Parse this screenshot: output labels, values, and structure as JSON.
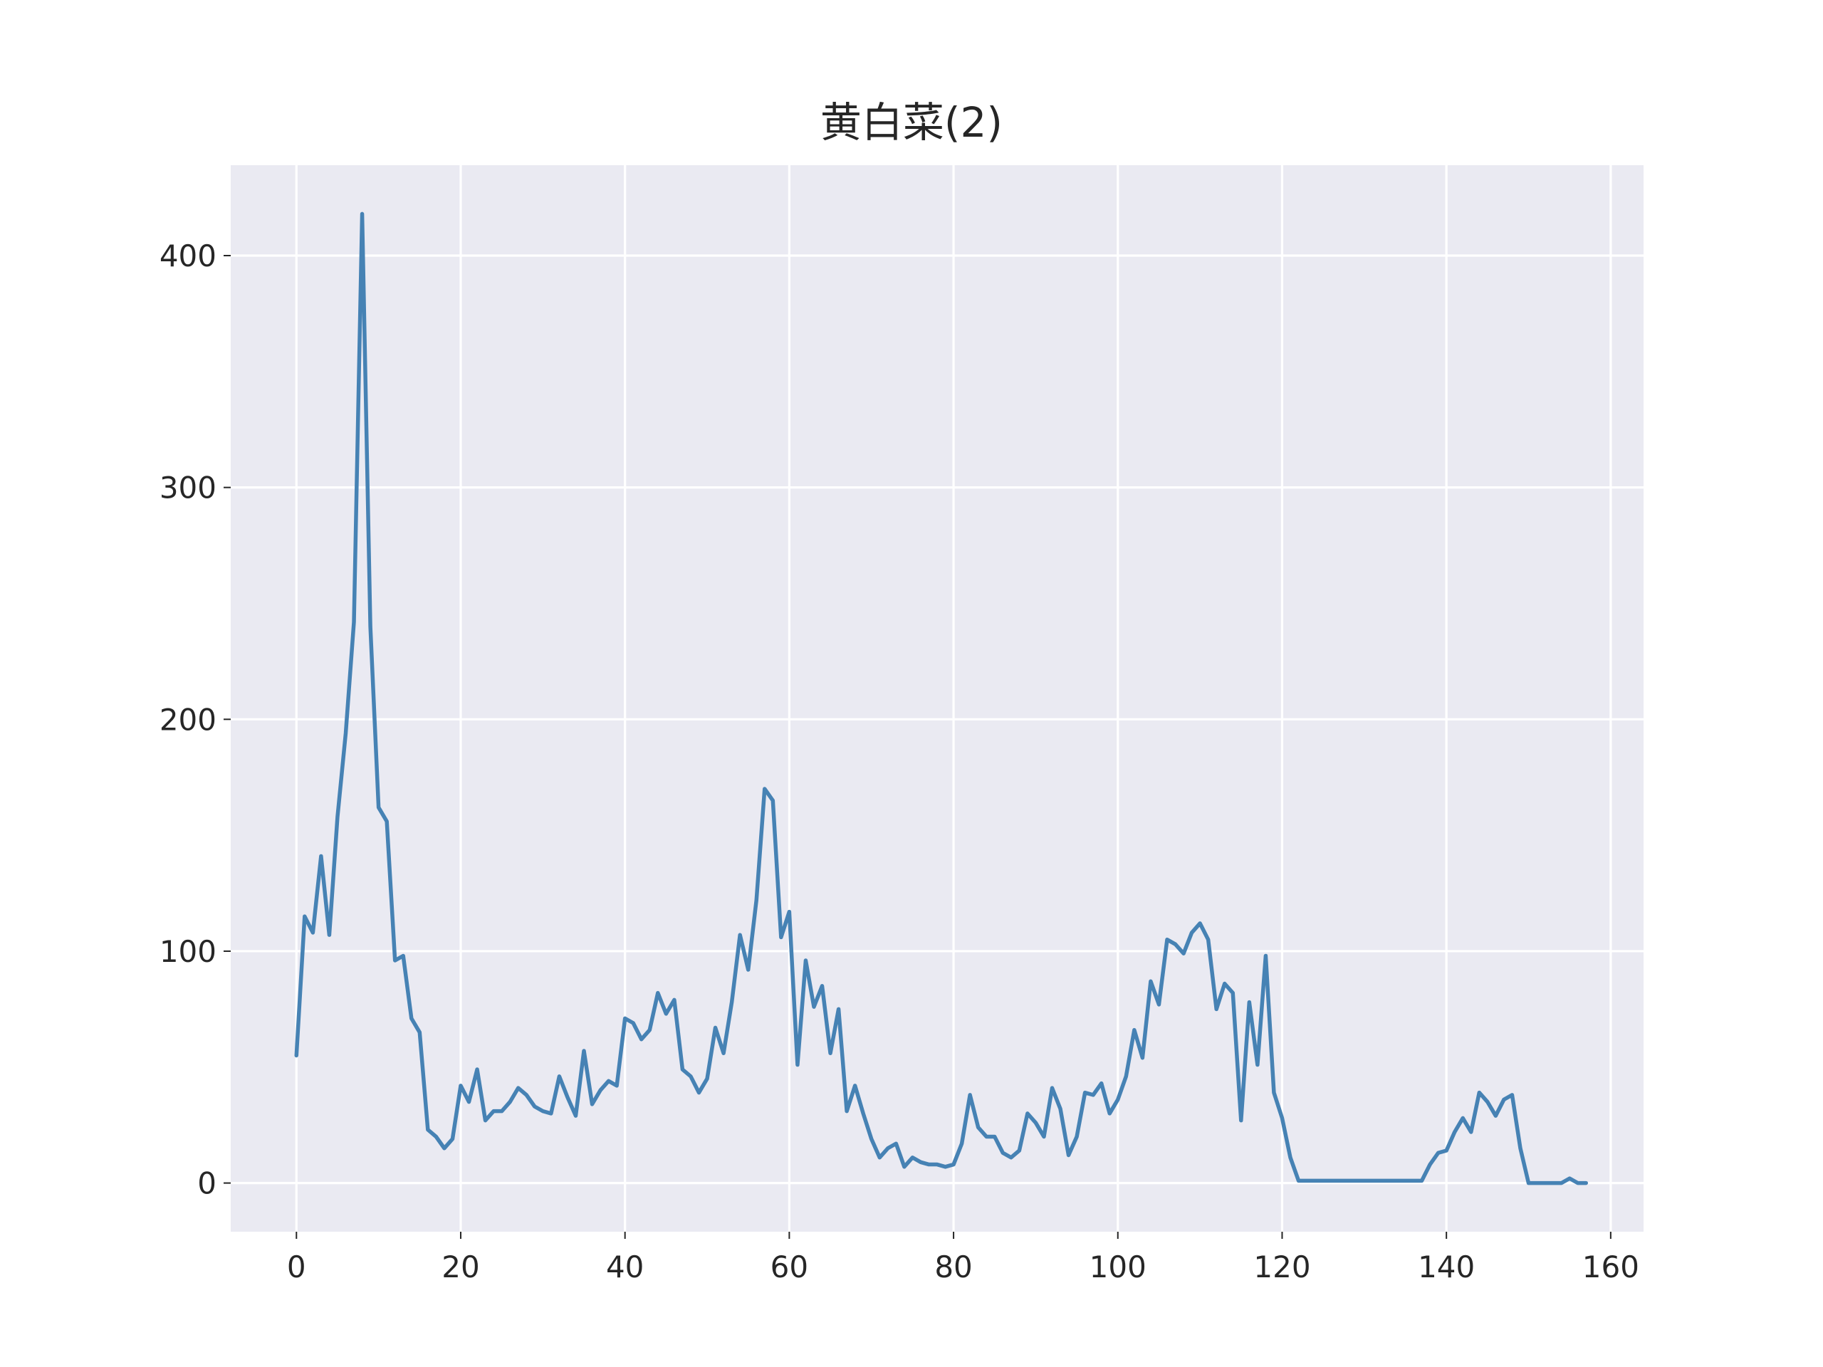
{
  "chart_data": {
    "type": "line",
    "title": "黄白菜(2)",
    "xlabel": "",
    "ylabel": "",
    "xlim": [
      -8,
      164
    ],
    "ylim": [
      -21,
      439
    ],
    "xticks": [
      0,
      20,
      40,
      60,
      80,
      100,
      120,
      140,
      160
    ],
    "yticks": [
      0,
      100,
      200,
      300,
      400
    ],
    "grid": true,
    "colors": {
      "series": "#4682b4",
      "plot_background": "#eaeaf2",
      "grid": "#ffffff",
      "text": "#262626"
    },
    "series": [
      {
        "values": [
          55,
          115,
          108,
          141,
          107,
          158,
          194,
          242,
          418,
          240,
          162,
          156,
          96,
          98,
          71,
          65,
          23,
          20,
          15,
          19,
          42,
          35,
          49,
          27,
          31,
          31,
          35,
          41,
          38,
          33,
          31,
          30,
          46,
          37,
          29,
          57,
          34,
          40,
          44,
          42,
          71,
          69,
          62,
          66,
          82,
          73,
          79,
          49,
          46,
          39,
          45,
          67,
          56,
          78,
          107,
          92,
          122,
          170,
          165,
          106,
          117,
          51,
          96,
          76,
          85,
          56,
          75,
          31,
          42,
          30,
          19,
          11,
          15,
          17,
          7,
          11,
          9,
          8,
          8,
          7,
          8,
          17,
          38,
          24,
          20,
          20,
          13,
          11,
          14,
          30,
          26,
          20,
          41,
          32,
          12,
          20,
          39,
          38,
          43,
          30,
          36,
          46,
          66,
          54,
          87,
          77,
          105,
          103,
          99,
          108,
          112,
          105,
          75,
          86,
          82,
          27,
          78,
          51,
          98,
          39,
          28,
          11,
          1,
          1,
          1,
          1,
          1,
          1,
          1,
          1,
          1,
          1,
          1,
          1,
          1,
          1,
          1,
          1,
          8,
          13,
          14,
          22,
          28,
          22,
          39,
          35,
          29,
          36,
          38,
          15,
          0,
          0,
          0,
          0,
          0,
          2,
          0,
          0
        ]
      }
    ]
  }
}
